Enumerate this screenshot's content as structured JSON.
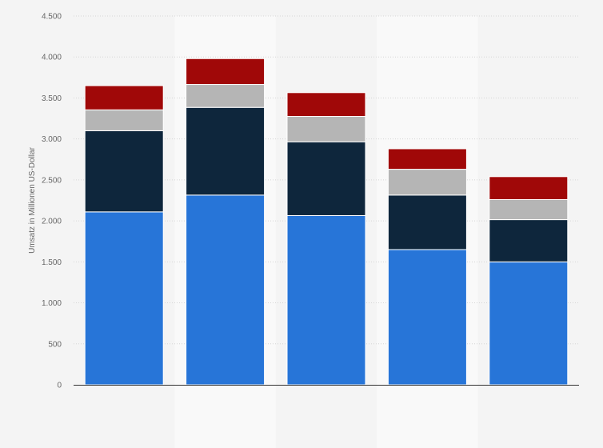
{
  "chart_data": {
    "type": "bar",
    "stacked": true,
    "title": "",
    "xlabel": "",
    "ylabel": "Umsatz in Millionen US-Dollar",
    "ylim": [
      0,
      4500
    ],
    "yticks": [
      0,
      500,
      1000,
      1500,
      2000,
      2500,
      3000,
      3500,
      4000,
      4500
    ],
    "ytick_labels": [
      "0",
      "500",
      "1.000",
      "1.500",
      "2.000",
      "2.500",
      "3.000",
      "3.500",
      "4.000",
      "4.500"
    ],
    "categories": [
      "",
      "",
      "",
      "",
      ""
    ],
    "grid": true,
    "legend": "none",
    "series": [
      {
        "color": "#2775d8",
        "values": [
          2110,
          2315,
          2065,
          1650,
          1500
        ]
      },
      {
        "color": "#0e263c",
        "values": [
          990,
          1070,
          900,
          665,
          515
        ]
      },
      {
        "color": "#b5b5b5",
        "values": [
          255,
          280,
          310,
          315,
          245
        ]
      },
      {
        "color": "#a00808",
        "values": [
          295,
          315,
          290,
          250,
          280
        ]
      }
    ]
  }
}
